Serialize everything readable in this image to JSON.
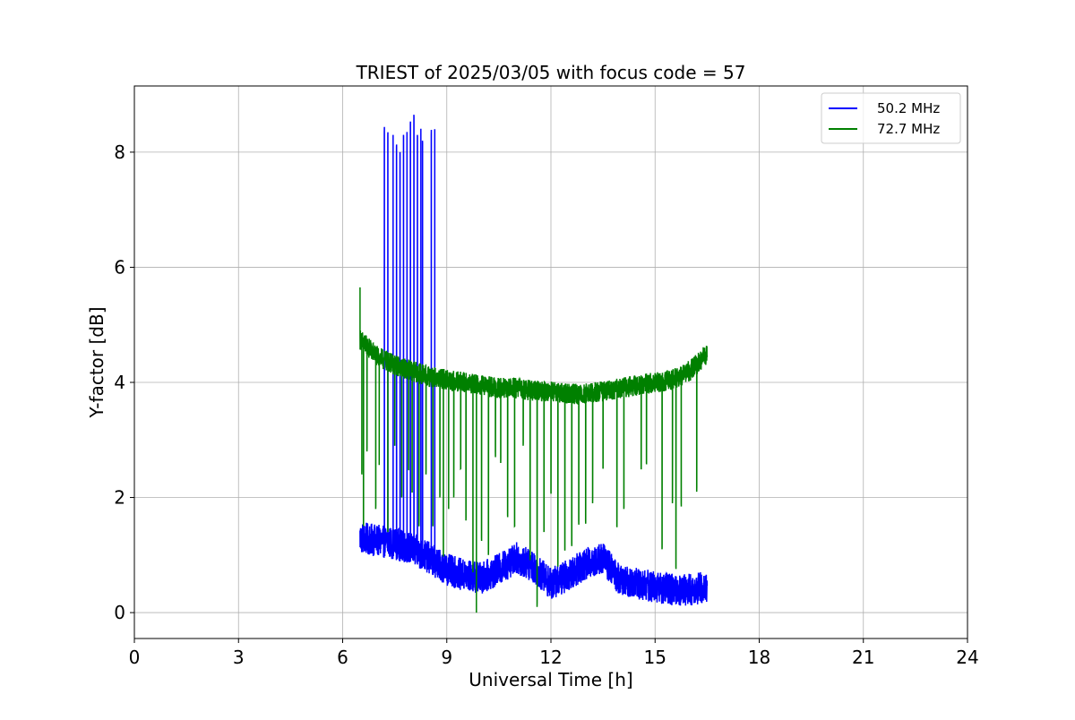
{
  "chart_data": {
    "type": "line",
    "title": "TRIEST of 2025/03/05 with focus code = 57",
    "xlabel": "Universal Time [h]",
    "ylabel": "Y-factor [dB]",
    "xlim": [
      0,
      24
    ],
    "ylim": [
      -0.45,
      9.15
    ],
    "xticks": [
      0,
      3,
      6,
      9,
      12,
      15,
      18,
      21,
      24
    ],
    "xtick_labels": [
      "0",
      "3",
      "6",
      "9",
      "12",
      "15",
      "18",
      "21",
      "24"
    ],
    "yticks": [
      0,
      2,
      4,
      6,
      8
    ],
    "ytick_labels": [
      "0",
      "2",
      "4",
      "6",
      "8"
    ],
    "grid": true,
    "legend_position": "top-right",
    "series": [
      {
        "name": "50.2 MHz",
        "color": "#0000ff",
        "baseline": [
          [
            6.5,
            1.3
          ],
          [
            7.0,
            1.25
          ],
          [
            7.5,
            1.2
          ],
          [
            8.0,
            1.1
          ],
          [
            8.5,
            0.95
          ],
          [
            9.0,
            0.75
          ],
          [
            9.5,
            0.65
          ],
          [
            10.0,
            0.6
          ],
          [
            10.5,
            0.75
          ],
          [
            11.0,
            0.95
          ],
          [
            11.5,
            0.8
          ],
          [
            12.0,
            0.5
          ],
          [
            12.5,
            0.65
          ],
          [
            13.0,
            0.85
          ],
          [
            13.5,
            0.95
          ],
          [
            14.0,
            0.55
          ],
          [
            14.5,
            0.5
          ],
          [
            15.0,
            0.45
          ],
          [
            15.5,
            0.4
          ],
          [
            16.0,
            0.4
          ],
          [
            16.5,
            0.45
          ]
        ],
        "noise_amplitude": 0.28,
        "spikes": [
          [
            7.2,
            8.35
          ],
          [
            7.3,
            8.3
          ],
          [
            7.45,
            8.3
          ],
          [
            7.55,
            8.1
          ],
          [
            7.65,
            8.0
          ],
          [
            7.75,
            8.3
          ],
          [
            7.85,
            8.35
          ],
          [
            7.95,
            8.5
          ],
          [
            8.05,
            8.65
          ],
          [
            8.15,
            8.3
          ],
          [
            8.25,
            8.35
          ],
          [
            8.3,
            8.2
          ],
          [
            8.55,
            8.3
          ],
          [
            8.65,
            8.4
          ]
        ]
      },
      {
        "name": "72.7 MHz",
        "color": "#008000",
        "baseline": [
          [
            6.5,
            4.75
          ],
          [
            7.0,
            4.45
          ],
          [
            7.5,
            4.3
          ],
          [
            8.0,
            4.2
          ],
          [
            8.5,
            4.1
          ],
          [
            9.0,
            4.05
          ],
          [
            9.5,
            4.0
          ],
          [
            10.0,
            3.95
          ],
          [
            10.5,
            3.9
          ],
          [
            11.0,
            3.9
          ],
          [
            11.5,
            3.85
          ],
          [
            12.0,
            3.85
          ],
          [
            12.5,
            3.8
          ],
          [
            13.0,
            3.8
          ],
          [
            13.5,
            3.85
          ],
          [
            14.0,
            3.9
          ],
          [
            14.5,
            3.95
          ],
          [
            15.0,
            4.0
          ],
          [
            15.5,
            4.05
          ],
          [
            16.0,
            4.2
          ],
          [
            16.5,
            4.5
          ]
        ],
        "noise_amplitude": 0.18,
        "start_peak": [
          6.5,
          5.65
        ],
        "dips": [
          [
            6.55,
            2.4
          ],
          [
            6.6,
            1.5
          ],
          [
            6.7,
            2.8
          ],
          [
            6.95,
            1.8
          ],
          [
            7.05,
            2.6
          ],
          [
            7.3,
            1.4
          ],
          [
            7.5,
            2.9
          ],
          [
            7.7,
            2.0
          ],
          [
            7.9,
            2.5
          ],
          [
            8.0,
            2.1
          ],
          [
            8.2,
            1.5
          ],
          [
            8.4,
            2.4
          ],
          [
            8.6,
            1.5
          ],
          [
            8.8,
            2.0
          ],
          [
            8.9,
            1.0
          ],
          [
            9.05,
            1.8
          ],
          [
            9.2,
            2.0
          ],
          [
            9.4,
            2.5
          ],
          [
            9.55,
            1.6
          ],
          [
            9.75,
            0.7
          ],
          [
            9.85,
            0.0
          ],
          [
            10.0,
            1.3
          ],
          [
            10.2,
            1.0
          ],
          [
            10.4,
            2.8
          ],
          [
            10.55,
            2.6
          ],
          [
            10.75,
            1.7
          ],
          [
            10.95,
            1.5
          ],
          [
            11.2,
            2.9
          ],
          [
            11.4,
            1.0
          ],
          [
            11.6,
            0.1
          ],
          [
            11.8,
            1.4
          ],
          [
            12.0,
            2.1
          ],
          [
            12.2,
            0.8
          ],
          [
            12.4,
            1.1
          ],
          [
            12.6,
            1.2
          ],
          [
            12.8,
            1.6
          ],
          [
            13.0,
            1.6
          ],
          [
            13.2,
            1.9
          ],
          [
            13.5,
            2.5
          ],
          [
            13.9,
            1.5
          ],
          [
            14.1,
            1.8
          ],
          [
            14.6,
            2.5
          ],
          [
            14.75,
            2.6
          ],
          [
            15.2,
            1.1
          ],
          [
            15.5,
            1.9
          ],
          [
            15.6,
            0.8
          ],
          [
            15.75,
            1.9
          ],
          [
            16.2,
            2.1
          ]
        ]
      }
    ]
  }
}
